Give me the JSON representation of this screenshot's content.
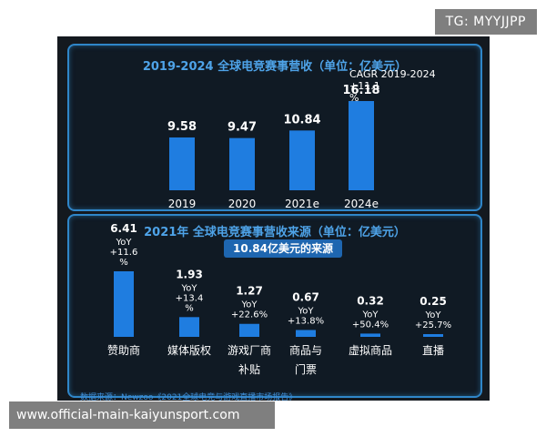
{
  "tag_badge": "TG: MYYJJPP",
  "watermark": "www.official-main-kaiyunsport.com",
  "colors": {
    "bar": "#1f7de0",
    "title": "#4ea3e8",
    "background": "#14191f",
    "panel_border": "#2f86c9"
  },
  "chart_data": [
    {
      "type": "bar",
      "title": "2019-2024 全球电竞赛事营收（单位：亿美元）",
      "categories": [
        "2019",
        "2020",
        "2021e",
        "2024e"
      ],
      "values": [
        9.58,
        9.47,
        10.84,
        16.18
      ],
      "value_labels": [
        "9.58",
        "9.47",
        "10.84",
        "16.18"
      ],
      "annotation_lines": [
        "CAGR 2019-2024",
        "+11.1",
        "%"
      ],
      "ylim": [
        0,
        16.18
      ]
    },
    {
      "type": "bar",
      "title": "2021年 全球电竞赛事营收来源（单位：亿美元）",
      "subtitle": "10.84亿美元的来源",
      "categories": [
        "赞助商",
        "媒体版权",
        "游戏厂商补贴",
        "商品与门票",
        "虚拟商品",
        "直播"
      ],
      "category_lines": [
        [
          "赞助商"
        ],
        [
          "媒体版权"
        ],
        [
          "游戏厂商",
          "补贴"
        ],
        [
          "商品与",
          "门票"
        ],
        [
          "虚拟商品"
        ],
        [
          "直播"
        ]
      ],
      "values": [
        6.41,
        1.93,
        1.27,
        0.67,
        0.32,
        0.25
      ],
      "value_labels": [
        "6.41",
        "1.93",
        "1.27",
        "0.67",
        "0.32",
        "0.25"
      ],
      "yoy_lines": [
        [
          "YoY",
          "+11.6",
          "%"
        ],
        [
          "YoY",
          "+13.4",
          "%"
        ],
        [
          "YoY",
          "+22.6%"
        ],
        [
          "YoY",
          "+13.8%"
        ],
        [
          "YoY",
          "+50.4%"
        ],
        [
          "YoY",
          "+25.7%"
        ]
      ],
      "ylim": [
        0,
        6.41
      ]
    }
  ],
  "source_note": "数据来源：Newzoo《2021全球电竞与游戏直播市场报告》"
}
